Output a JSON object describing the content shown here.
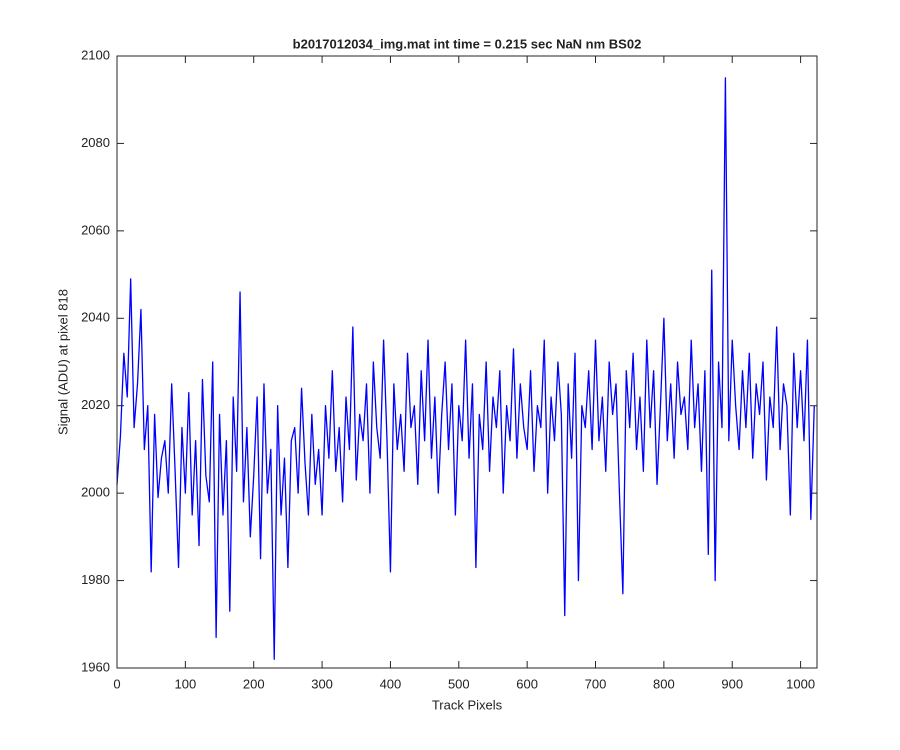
{
  "chart_data": {
    "type": "line",
    "title": "b2017012034_img.mat int time = 0.215 sec  NaN nm BS02",
    "xlabel": "Track Pixels",
    "ylabel": "Signal (ADU) at pixel 818",
    "x": [
      0,
      5,
      10,
      15,
      20,
      25,
      30,
      35,
      40,
      45,
      50,
      55,
      60,
      65,
      70,
      75,
      80,
      85,
      90,
      95,
      100,
      105,
      110,
      115,
      120,
      125,
      130,
      135,
      140,
      145,
      150,
      155,
      160,
      165,
      170,
      175,
      180,
      185,
      190,
      195,
      200,
      205,
      210,
      215,
      220,
      225,
      230,
      235,
      240,
      245,
      250,
      255,
      260,
      265,
      270,
      275,
      280,
      285,
      290,
      295,
      300,
      305,
      310,
      315,
      320,
      325,
      330,
      335,
      340,
      345,
      350,
      355,
      360,
      365,
      370,
      375,
      380,
      385,
      390,
      395,
      400,
      405,
      410,
      415,
      420,
      425,
      430,
      435,
      440,
      445,
      450,
      455,
      460,
      465,
      470,
      475,
      480,
      485,
      490,
      495,
      500,
      505,
      510,
      515,
      520,
      525,
      530,
      535,
      540,
      545,
      550,
      555,
      560,
      565,
      570,
      575,
      580,
      585,
      590,
      595,
      600,
      605,
      610,
      615,
      620,
      625,
      630,
      635,
      640,
      645,
      650,
      655,
      660,
      665,
      670,
      675,
      680,
      685,
      690,
      695,
      700,
      705,
      710,
      715,
      720,
      725,
      730,
      735,
      740,
      745,
      750,
      755,
      760,
      765,
      770,
      775,
      780,
      785,
      790,
      795,
      800,
      805,
      810,
      815,
      820,
      825,
      830,
      835,
      840,
      845,
      850,
      855,
      860,
      865,
      870,
      875,
      880,
      885,
      890,
      895,
      900,
      905,
      910,
      915,
      920,
      925,
      930,
      935,
      940,
      945,
      950,
      955,
      960,
      965,
      970,
      975,
      980,
      985,
      990,
      995,
      1000,
      1005,
      1010,
      1015,
      1020
    ],
    "series": [
      {
        "name": "signal",
        "color": "#0000ff",
        "values": [
          2002,
          2013,
          2032,
          2022,
          2049,
          2015,
          2025,
          2042,
          2010,
          2020,
          1982,
          2018,
          1999,
          2008,
          2012,
          2000,
          2025,
          2005,
          1983,
          2015,
          2000,
          2023,
          1995,
          2012,
          1988,
          2026,
          2004,
          1998,
          2030,
          1967,
          2018,
          1995,
          2012,
          1973,
          2022,
          2005,
          2046,
          1998,
          2015,
          1990,
          2004,
          2022,
          1985,
          2025,
          2000,
          2010,
          1962,
          2020,
          1995,
          2008,
          1983,
          2012,
          2015,
          2000,
          2024,
          2007,
          1995,
          2018,
          2002,
          2010,
          1995,
          2020,
          2008,
          2028,
          2005,
          2015,
          1998,
          2022,
          2010,
          2038,
          2003,
          2018,
          2012,
          2025,
          2000,
          2030,
          2015,
          2008,
          2035,
          2012,
          1982,
          2025,
          2010,
          2018,
          2005,
          2032,
          2015,
          2020,
          2002,
          2028,
          2012,
          2035,
          2008,
          2022,
          2000,
          2018,
          2030,
          2010,
          2025,
          1995,
          2020,
          2012,
          2035,
          2008,
          2025,
          1983,
          2018,
          2010,
          2030,
          2005,
          2022,
          2015,
          2028,
          2000,
          2020,
          2012,
          2033,
          2008,
          2025,
          2015,
          2010,
          2028,
          2005,
          2020,
          2015,
          2035,
          2000,
          2022,
          2012,
          2030,
          2018,
          1972,
          2025,
          2008,
          2032,
          1980,
          2020,
          2015,
          2028,
          2010,
          2035,
          2012,
          2022,
          2005,
          2030,
          2018,
          2025,
          2000,
          1977,
          2028,
          2015,
          2032,
          2010,
          2022,
          2005,
          2035,
          2015,
          2028,
          2002,
          2020,
          2040,
          2012,
          2025,
          2008,
          2030,
          2018,
          2022,
          2010,
          2035,
          2015,
          2025,
          2005,
          2028,
          1986,
          2051,
          1980,
          2030,
          2015,
          2095,
          2012,
          2035,
          2020,
          2010,
          2028,
          2015,
          2032,
          2008,
          2025,
          2018,
          2030,
          2003,
          2022,
          2015,
          2038,
          2010,
          2025,
          2020,
          1995,
          2032,
          2015,
          2028,
          2012,
          2035,
          1994,
          2020
        ]
      }
    ],
    "xlim": [
      0,
      1024
    ],
    "xticks": [
      0,
      100,
      200,
      300,
      400,
      500,
      600,
      700,
      800,
      900,
      1000
    ],
    "ylim": [
      1960,
      2100
    ],
    "yticks": [
      1960,
      1980,
      2000,
      2020,
      2040,
      2060,
      2080,
      2100
    ],
    "grid": false
  }
}
